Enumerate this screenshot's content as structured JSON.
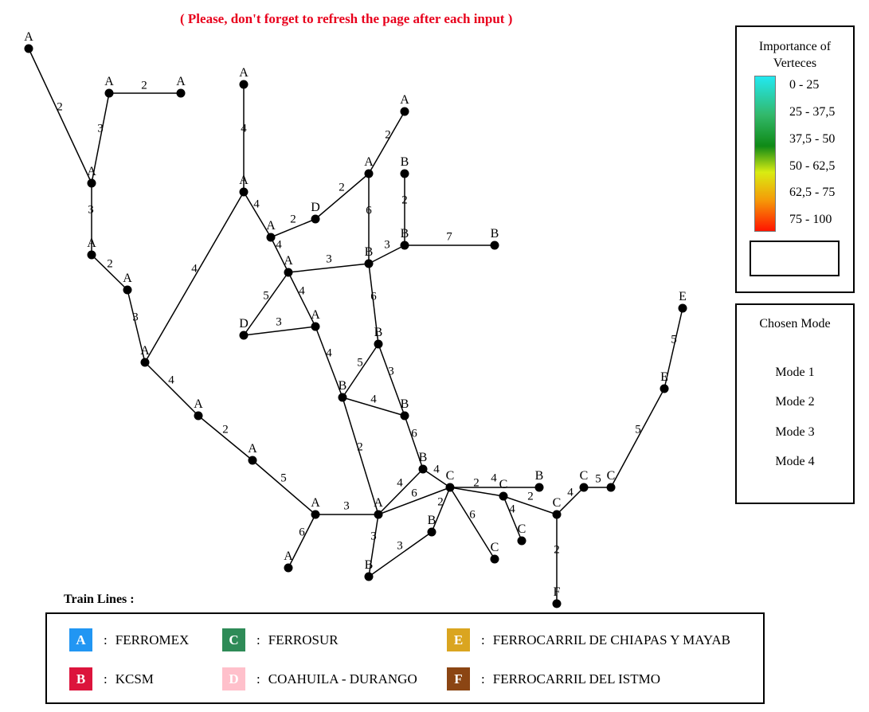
{
  "notice": "( Please, don't forget to refresh the page after each input )",
  "importance": {
    "title": "Importance of Verteces",
    "ranges": [
      "0 - 25",
      "25 - 37,5",
      "37,5 - 50",
      "50 - 62,5",
      "62,5 - 75",
      "75 - 100"
    ]
  },
  "mode": {
    "title": "Chosen Mode",
    "options": [
      "Mode 1",
      "Mode 2",
      "Mode 3",
      "Mode 4"
    ]
  },
  "train_lines": {
    "title": "Train Lines :",
    "items": [
      {
        "letter": "A",
        "name": "FERROMEX",
        "color": "#2196f3"
      },
      {
        "letter": "B",
        "name": "KCSM",
        "color": "#dc143c"
      },
      {
        "letter": "C",
        "name": "FERROSUR",
        "color": "#2e8b57"
      },
      {
        "letter": "D",
        "name": "COAHUILA - DURANGO",
        "color": "#ffc0cb"
      },
      {
        "letter": "E",
        "name": "FERROCARRIL DE CHIAPAS Y MAYAB",
        "color": "#daa520"
      },
      {
        "letter": "F",
        "name": "FERROCARRIL DEL ISTMO",
        "color": "#8b4513"
      }
    ]
  },
  "graph": {
    "nodes": {
      "n1": "A",
      "n2": "A",
      "n3": "A",
      "n4": "A",
      "n5": "A",
      "n6": "A",
      "n7": "A",
      "n8": "A",
      "n9": "A",
      "n10": "A",
      "n11": "A",
      "n12": "A",
      "n13": "A",
      "n14": "A",
      "n15": "A",
      "n16": "A",
      "n17": "A",
      "n18": "A",
      "n19": "A",
      "n20": "A",
      "n21": "D",
      "n22": "D",
      "n23": "B",
      "n24": "B",
      "n25": "B",
      "n26": "B",
      "n27": "B",
      "n28": "B",
      "n29": "B",
      "n30": "B",
      "n31": "B",
      "n32": "B",
      "n33": "B",
      "n34": "C",
      "n35": "C",
      "n36": "C",
      "n37": "C",
      "n38": "C",
      "n39": "C",
      "n40": "C",
      "n41": "E",
      "n42": "E",
      "n43": "F"
    },
    "edges": [
      {
        "from": "n1",
        "to": "n4",
        "w": 2
      },
      {
        "from": "n2",
        "to": "n3",
        "w": 2
      },
      {
        "from": "n2",
        "to": "n4",
        "w": 3
      },
      {
        "from": "n4",
        "to": "n5",
        "w": 3
      },
      {
        "from": "n5",
        "to": "n6",
        "w": 2
      },
      {
        "from": "n6",
        "to": "n7",
        "w": 3
      },
      {
        "from": "n7",
        "to": "n9",
        "w": 4
      },
      {
        "from": "n8",
        "to": "n9",
        "w": 4
      },
      {
        "from": "n7",
        "to": "n10",
        "w": 4
      },
      {
        "from": "n10",
        "to": "n11",
        "w": 2
      },
      {
        "from": "n11",
        "to": "n12",
        "w": 5
      },
      {
        "from": "n12",
        "to": "n13",
        "w": 6
      },
      {
        "from": "n12",
        "to": "n14",
        "w": 3
      },
      {
        "from": "n9",
        "to": "n15",
        "w": 4
      },
      {
        "from": "n15",
        "to": "n21",
        "w": 2
      },
      {
        "from": "n21",
        "to": "n17",
        "w": 2
      },
      {
        "from": "n17",
        "to": "n16",
        "w": 2
      },
      {
        "from": "n17",
        "to": "n24",
        "w": 6
      },
      {
        "from": "n15",
        "to": "n18",
        "w": 4
      },
      {
        "from": "n18",
        "to": "n24",
        "w": 3
      },
      {
        "from": "n18",
        "to": "n22",
        "w": 5
      },
      {
        "from": "n22",
        "to": "n19",
        "w": 3
      },
      {
        "from": "n18",
        "to": "n19",
        "w": 4
      },
      {
        "from": "n19",
        "to": "n27",
        "w": 4
      },
      {
        "from": "n23",
        "to": "n25",
        "w": 2
      },
      {
        "from": "n24",
        "to": "n25",
        "w": 3
      },
      {
        "from": "n25",
        "to": "n26",
        "w": 7
      },
      {
        "from": "n24",
        "to": "n28",
        "w": 6
      },
      {
        "from": "n28",
        "to": "n27",
        "w": 5
      },
      {
        "from": "n28",
        "to": "n29",
        "w": 3
      },
      {
        "from": "n27",
        "to": "n29",
        "w": 4
      },
      {
        "from": "n27",
        "to": "n14",
        "w": 2
      },
      {
        "from": "n29",
        "to": "n30",
        "w": 6
      },
      {
        "from": "n30",
        "to": "n14",
        "w": 4
      },
      {
        "from": "n30",
        "to": "n34",
        "w": 4
      },
      {
        "from": "n14",
        "to": "n34",
        "w": 6
      },
      {
        "from": "n14",
        "to": "n33",
        "w": 3
      },
      {
        "from": "n33",
        "to": "n31",
        "w": 3
      },
      {
        "from": "n34",
        "to": "n31",
        "w": 2
      },
      {
        "from": "n34",
        "to": "n32",
        "w": 2
      },
      {
        "from": "n34",
        "to": "n35",
        "w": 4
      },
      {
        "from": "n34",
        "to": "n37",
        "w": 6
      },
      {
        "from": "n35",
        "to": "n36",
        "w": 4
      },
      {
        "from": "n35",
        "to": "n38",
        "w": 2
      },
      {
        "from": "n38",
        "to": "n39",
        "w": 4
      },
      {
        "from": "n39",
        "to": "n40",
        "w": 5
      },
      {
        "from": "n40",
        "to": "n42",
        "w": 5
      },
      {
        "from": "n42",
        "to": "n41",
        "w": 5
      },
      {
        "from": "n38",
        "to": "n43",
        "w": 2
      },
      {
        "from": "n12",
        "to": "n20",
        "w": 3
      }
    ]
  }
}
